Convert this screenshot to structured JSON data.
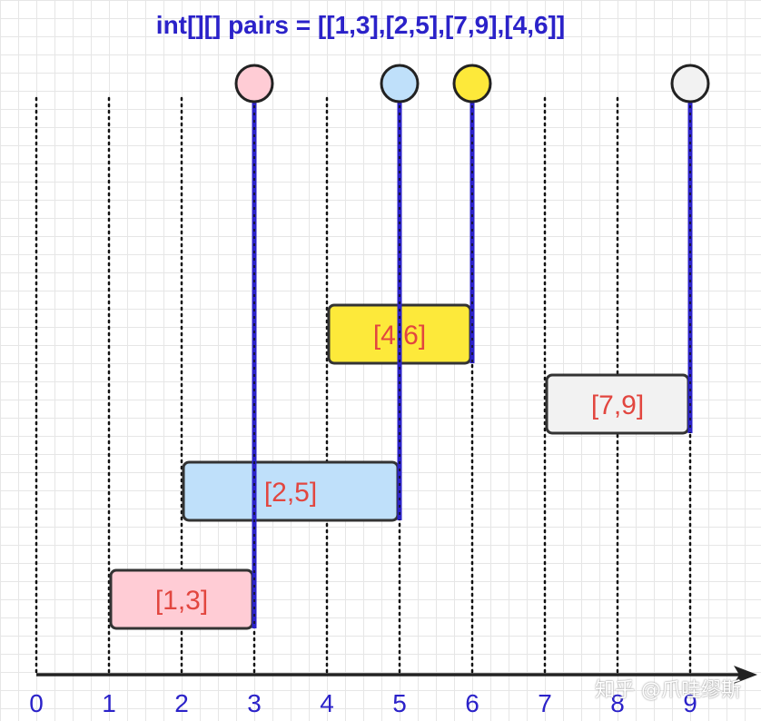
{
  "title": "int[][] pairs = [[1,3],[2,5],[7,9],[4,6]]",
  "axis": {
    "ticks": [
      "0",
      "1",
      "2",
      "3",
      "4",
      "5",
      "6",
      "7",
      "8",
      "9"
    ],
    "range": [
      0,
      9
    ],
    "color": "#2b22c9"
  },
  "intervals": [
    {
      "label": "[1,3]",
      "start": 1,
      "end": 3,
      "fill": "#ffccd5",
      "circle": "#ffccd5"
    },
    {
      "label": "[2,5]",
      "start": 2,
      "end": 5,
      "fill": "#bfe0fa",
      "circle": "#bfe0fa"
    },
    {
      "label": "[4,6]",
      "start": 4,
      "end": 6,
      "fill": "#fde93a",
      "circle": "#fde93a"
    },
    {
      "label": "[7,9]",
      "start": 7,
      "end": 9,
      "fill": "#f2f2f2",
      "circle": "#f2f2f2"
    }
  ],
  "colors": {
    "line": "#2b22c9",
    "label": "#e2463f",
    "box_border": "#333333"
  },
  "watermark": "知乎 @爪哇缪斯"
}
